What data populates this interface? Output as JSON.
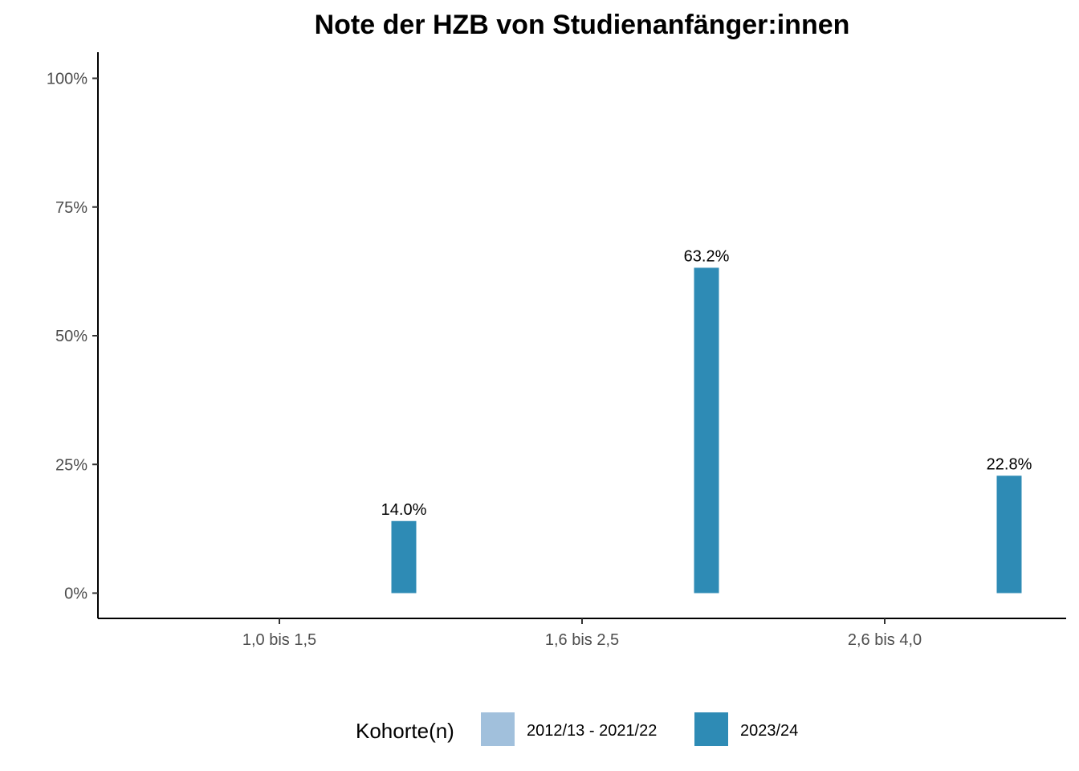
{
  "chart_data": {
    "type": "bar",
    "title": "Note der HZB von Studienanfänger:innen",
    "xlabel": "",
    "ylabel": "",
    "categories": [
      "1,0 bis 1,5",
      "1,6 bis 2,5",
      "2,6 bis 4,0"
    ],
    "series": [
      {
        "name": "2012/13 - 2021/22",
        "color": "#a1c0dc",
        "values": [
          null,
          null,
          null
        ],
        "labels": [
          "",
          "",
          ""
        ]
      },
      {
        "name": "2023/24",
        "color": "#2e8bb5",
        "values": [
          14.0,
          63.2,
          22.8
        ],
        "labels": [
          "14.0%",
          "63.2%",
          "22.8%"
        ]
      }
    ],
    "ylim": [
      0,
      100
    ],
    "yticks": [
      0,
      25,
      50,
      75,
      100
    ],
    "ytick_labels": [
      "0%",
      "25%",
      "50%",
      "75%",
      "100%"
    ],
    "grid": false,
    "legend": {
      "title": "Kohorte(n)",
      "position": "bottom"
    }
  }
}
